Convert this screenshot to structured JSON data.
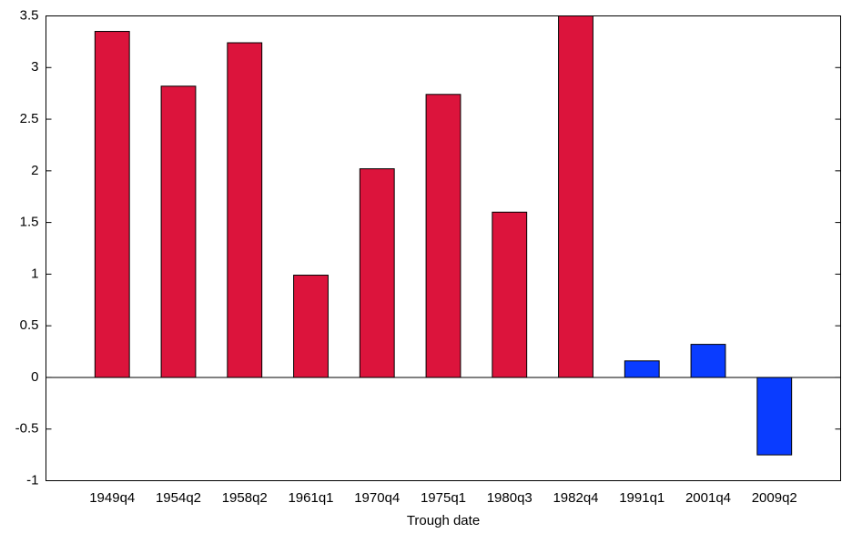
{
  "chart_data": {
    "type": "bar",
    "x_label": "Trough date",
    "categories": [
      "1949q4",
      "1954q2",
      "1958q2",
      "1961q1",
      "1970q4",
      "1975q1",
      "1980q3",
      "1982q4",
      "1991q1",
      "2001q4",
      "2009q2"
    ],
    "values": [
      3.35,
      2.82,
      3.24,
      0.99,
      2.02,
      2.74,
      1.6,
      3.5,
      0.16,
      0.32,
      -0.75
    ],
    "colors": [
      "#dc143c",
      "#dc143c",
      "#dc143c",
      "#dc143c",
      "#dc143c",
      "#dc143c",
      "#dc143c",
      "#dc143c",
      "#0a3cff",
      "#0a3cff",
      "#0a3cff"
    ],
    "ylim": [
      -1,
      3.5
    ],
    "yticks": [
      -1,
      -0.5,
      0,
      0.5,
      1,
      1.5,
      2,
      2.5,
      3,
      3.5
    ],
    "grid": false
  }
}
